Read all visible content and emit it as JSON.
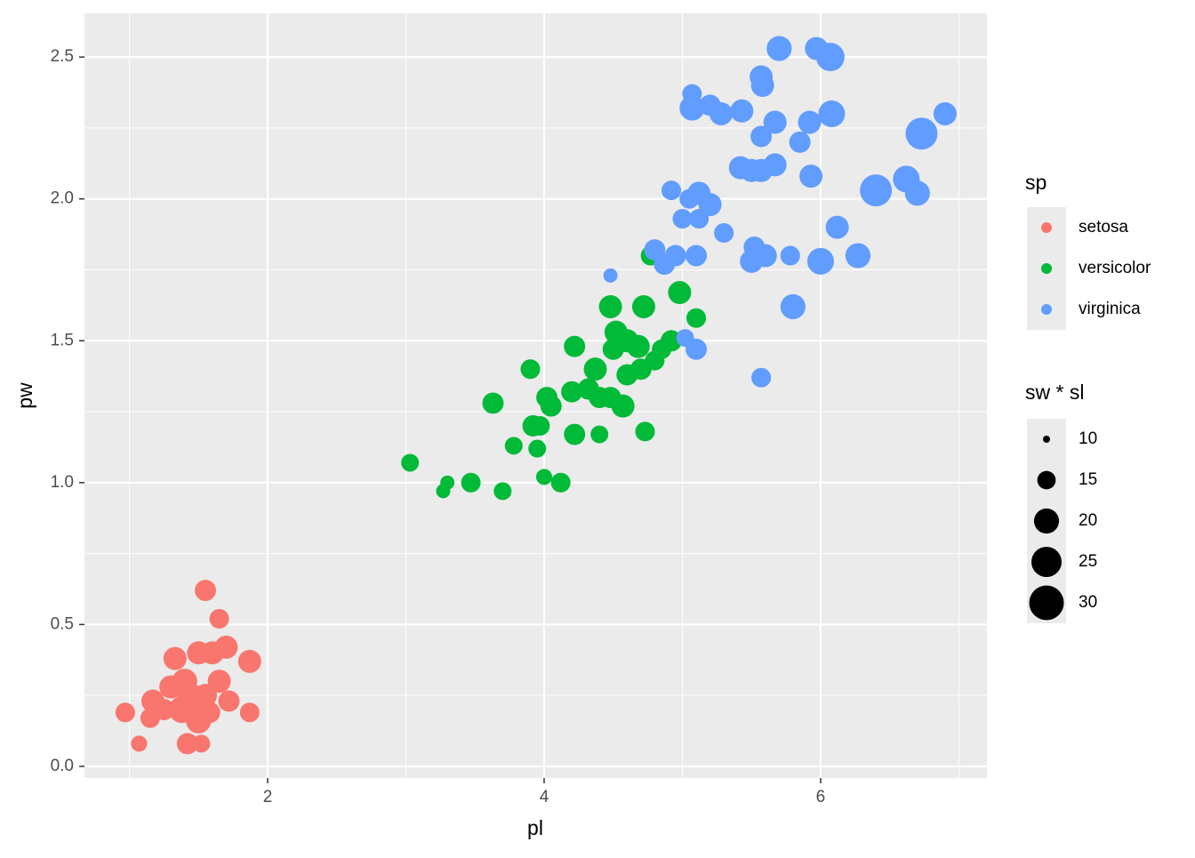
{
  "chart_data": {
    "type": "scatter",
    "x_label": "pl",
    "y_label": "pw",
    "xlim": [
      0.675,
      7.203
    ],
    "ylim": [
      -0.041,
      2.654
    ],
    "xticks": [
      2,
      4,
      6
    ],
    "yticks": [
      {
        "value": 0,
        "label": "0.0"
      },
      {
        "value": 0.5,
        "label": "0.5"
      },
      {
        "value": 1,
        "label": "1.0"
      },
      {
        "value": 1.5,
        "label": "1.5"
      },
      {
        "value": 2,
        "label": "2.0"
      },
      {
        "value": 2.5,
        "label": "2.5"
      }
    ],
    "grid": true,
    "color_legend_title": "sp",
    "size_legend": {
      "title": "sw * sl",
      "values": [
        10,
        15,
        20,
        25,
        30
      ]
    },
    "series": [
      {
        "name": "setosa",
        "color": "#F8766D",
        "x": [
          0.97,
          1.07,
          1.15,
          1.17,
          1.3,
          1.33,
          1.38,
          1.42,
          1.45,
          1.5,
          1.5,
          1.52,
          1.55,
          1.58,
          1.6,
          1.65,
          1.65,
          1.7,
          1.72,
          1.87,
          1.87,
          1.25,
          1.4,
          1.55
        ],
        "y": [
          0.19,
          0.08,
          0.17,
          0.23,
          0.28,
          0.38,
          0.2,
          0.08,
          0.24,
          0.16,
          0.4,
          0.08,
          0.62,
          0.19,
          0.4,
          0.52,
          0.3,
          0.42,
          0.23,
          0.37,
          0.19,
          0.2,
          0.3,
          0.25
        ],
        "size": [
          15.8,
          13.6,
          15.8,
          18.4,
          18.4,
          18.4,
          21.5,
          17.0,
          23.2,
          20.0,
          18.4,
          14.6,
          17.0,
          17.0,
          18.4,
          15.8,
          18.4,
          18.4,
          17.0,
          18.4,
          15.8,
          17.0,
          20.0,
          18.4
        ]
      },
      {
        "name": "versicolor",
        "color": "#00BA38",
        "x": [
          3.03,
          3.27,
          3.3,
          3.47,
          3.63,
          3.7,
          3.78,
          3.9,
          3.92,
          3.95,
          3.97,
          4.0,
          4.02,
          4.05,
          4.12,
          4.2,
          4.22,
          4.22,
          4.32,
          4.37,
          4.4,
          4.4,
          4.48,
          4.48,
          4.5,
          4.52,
          4.57,
          4.6,
          4.6,
          4.68,
          4.7,
          4.72,
          4.73,
          4.77,
          4.8,
          4.85,
          4.92,
          4.98,
          5.1
        ],
        "y": [
          1.07,
          0.97,
          1.0,
          1.0,
          1.28,
          0.97,
          1.13,
          1.4,
          1.2,
          1.12,
          1.2,
          1.02,
          1.3,
          1.27,
          1.0,
          1.32,
          1.17,
          1.48,
          1.33,
          1.4,
          1.17,
          1.3,
          1.3,
          1.62,
          1.47,
          1.53,
          1.27,
          1.5,
          1.38,
          1.48,
          1.4,
          1.62,
          1.18,
          1.8,
          1.43,
          1.47,
          1.5,
          1.67,
          1.58
        ],
        "size": [
          14.6,
          12.6,
          12.6,
          15.8,
          17.0,
          14.6,
          14.6,
          15.8,
          17.0,
          14.6,
          15.8,
          13.6,
          17.0,
          17.0,
          15.8,
          17.0,
          17.0,
          17.0,
          17.0,
          18.4,
          14.6,
          17.0,
          17.0,
          18.4,
          17.0,
          18.4,
          18.4,
          18.4,
          17.0,
          18.4,
          17.0,
          18.4,
          15.8,
          15.8,
          15.8,
          15.8,
          17.0,
          18.4,
          15.8
        ]
      },
      {
        "name": "virginica",
        "color": "#619CFF",
        "x": [
          4.48,
          4.8,
          4.87,
          4.92,
          4.95,
          5.0,
          5.02,
          5.05,
          5.07,
          5.07,
          5.1,
          5.1,
          5.12,
          5.12,
          5.2,
          5.2,
          5.28,
          5.3,
          5.43,
          5.42,
          5.5,
          5.5,
          5.52,
          5.57,
          5.57,
          5.57,
          5.58,
          5.57,
          5.6,
          5.67,
          5.67,
          5.7,
          5.78,
          5.8,
          5.85,
          5.92,
          5.93,
          5.97,
          6.0,
          6.07,
          6.08,
          6.12,
          6.27,
          6.4,
          6.62,
          6.7,
          6.73,
          6.9
        ],
        "y": [
          1.73,
          1.82,
          1.77,
          2.03,
          1.8,
          1.93,
          1.51,
          2.0,
          2.37,
          2.32,
          1.8,
          1.47,
          2.02,
          1.93,
          1.98,
          2.33,
          2.3,
          1.88,
          2.31,
          2.11,
          2.1,
          1.78,
          1.83,
          2.1,
          2.22,
          2.43,
          2.4,
          1.37,
          1.8,
          2.12,
          2.27,
          2.53,
          1.8,
          1.62,
          2.2,
          2.27,
          2.08,
          2.53,
          1.78,
          2.5,
          2.3,
          1.9,
          1.8,
          2.03,
          2.07,
          2.02,
          2.23,
          2.3
        ],
        "size": [
          12.6,
          17.0,
          17.0,
          15.8,
          17.0,
          15.8,
          14.6,
          15.8,
          15.8,
          20.0,
          17.0,
          17.0,
          18.4,
          15.8,
          18.4,
          17.0,
          18.4,
          15.8,
          18.4,
          18.4,
          18.4,
          18.4,
          17.0,
          18.4,
          17.0,
          18.4,
          18.4,
          15.8,
          18.4,
          18.4,
          18.4,
          20.0,
          15.8,
          20.0,
          17.0,
          18.4,
          18.4,
          18.4,
          21.5,
          23.2,
          21.5,
          18.4,
          20.0,
          26.9,
          21.5,
          20.0,
          26.9,
          18.4
        ]
      }
    ]
  }
}
